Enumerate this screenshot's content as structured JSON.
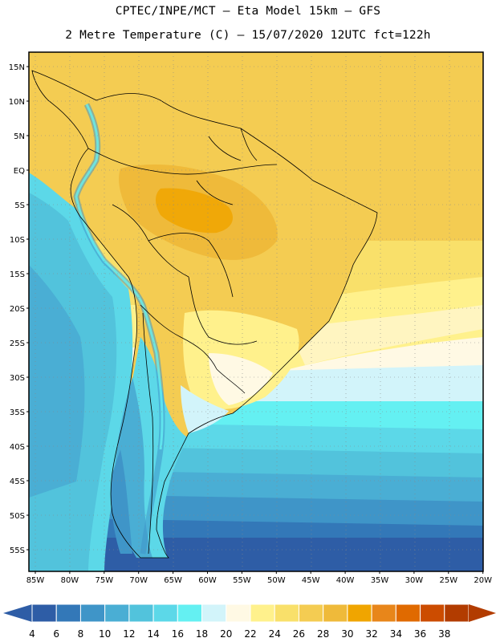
{
  "header": {
    "line1": "CPTEC/INPE/MCT —  Eta Model 15km — GFS",
    "line2": "2 Metre Temperature (C) — 15/07/2020 12UTC fct=122h"
  },
  "axes": {
    "lat_labels": [
      "15N",
      "10N",
      "5N",
      "EQ",
      "5S",
      "10S",
      "15S",
      "20S",
      "25S",
      "30S",
      "35S",
      "40S",
      "45S",
      "50S",
      "55S"
    ],
    "lon_labels": [
      "85W",
      "80W",
      "75W",
      "70W",
      "65W",
      "60W",
      "55W",
      "50W",
      "45W",
      "40W",
      "35W",
      "30W",
      "25W",
      "20W"
    ]
  },
  "colorbar": {
    "labels": [
      "4",
      "6",
      "8",
      "10",
      "12",
      "14",
      "16",
      "18",
      "20",
      "22",
      "24",
      "26",
      "28",
      "30",
      "32",
      "34",
      "36",
      "38"
    ],
    "colors": [
      "#2e5da6",
      "#3378b8",
      "#3f95c8",
      "#4aaed4",
      "#52c3dc",
      "#5cd8e8",
      "#64f0f2",
      "#d2f4fa",
      "#fff9e4",
      "#fff18c",
      "#f9e06a",
      "#f4cc52",
      "#efba3a",
      "#f0a500",
      "#e8861a",
      "#e06a00",
      "#cc4c00",
      "#b23c00"
    ],
    "low_arrow_color": "#2e5da6",
    "high_arrow_color": "#b23c00"
  }
}
